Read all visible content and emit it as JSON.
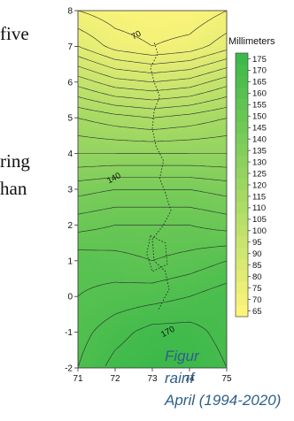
{
  "page_text": {
    "line_1": "five",
    "line_2": "ring",
    "line_3": "han",
    "caption_1": "Figur",
    "caption_2": "rainf",
    "caption_3": "April (1994-2020)"
  },
  "chart_data": {
    "type": "heatmap",
    "title": "",
    "xlabel": "",
    "ylabel": "",
    "xlim": [
      71,
      75
    ],
    "ylim": [
      -2,
      8
    ],
    "x_ticks": [
      71,
      72,
      73,
      74,
      75
    ],
    "y_ticks": [
      -2,
      -1,
      0,
      1,
      2,
      3,
      4,
      5,
      6,
      7,
      8
    ],
    "legend": {
      "title": "Millimeters",
      "placement": "right",
      "levels": [
        175,
        170,
        165,
        160,
        155,
        150,
        145,
        140,
        135,
        130,
        125,
        120,
        115,
        110,
        105,
        100,
        95,
        90,
        85,
        80,
        75,
        70,
        65
      ],
      "color_low": "#fcf47a",
      "color_high": "#3cb94a"
    },
    "contour_labels": [
      {
        "text": "70",
        "x": 72.6,
        "y": 7.25
      },
      {
        "text": "140",
        "x": 72.0,
        "y": 3.25
      },
      {
        "text": "170",
        "x": 73.45,
        "y": -1.05
      }
    ],
    "value_field": {
      "description_rows": [
        {
          "y": 8.0,
          "values": [
            70,
            67,
            66,
            66,
            70
          ]
        },
        {
          "y": 7.0,
          "values": [
            80,
            73,
            70,
            72,
            78
          ]
        },
        {
          "y": 6.0,
          "values": [
            98,
            92,
            90,
            92,
            98
          ]
        },
        {
          "y": 5.0,
          "values": [
            115,
            112,
            110,
            112,
            115
          ]
        },
        {
          "y": 4.0,
          "values": [
            125,
            125,
            125,
            125,
            125
          ]
        },
        {
          "y": 3.0,
          "values": [
            138,
            140,
            140,
            140,
            138
          ]
        },
        {
          "y": 2.0,
          "values": [
            148,
            150,
            150,
            150,
            148
          ]
        },
        {
          "y": 1.0,
          "values": [
            158,
            157,
            155,
            157,
            160
          ]
        },
        {
          "y": 0.0,
          "values": [
            160,
            162,
            163,
            165,
            168
          ]
        },
        {
          "y": -1.0,
          "values": [
            163,
            168,
            172,
            172,
            168
          ]
        },
        {
          "y": -2.0,
          "values": [
            165,
            172,
            175,
            175,
            170
          ]
        }
      ]
    },
    "contour_interval": 5,
    "grid": false
  }
}
